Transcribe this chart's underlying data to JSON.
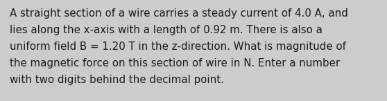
{
  "text_lines": [
    "A straight section of a wire carries a steady current of 4.0 A, and",
    "lies along the x-axis with a length of 0.92 m. There is also a",
    "uniform field B = 1.20 T in the z-direction. What is magnitude of",
    "the magnetic force on this section of wire in N. Enter a number",
    "with two digits behind the decimal point."
  ],
  "background_color": "#cccccc",
  "text_color": "#1a1a1a",
  "font_size": 10.8,
  "fig_width": 5.58,
  "fig_height": 1.46,
  "dpi": 100
}
